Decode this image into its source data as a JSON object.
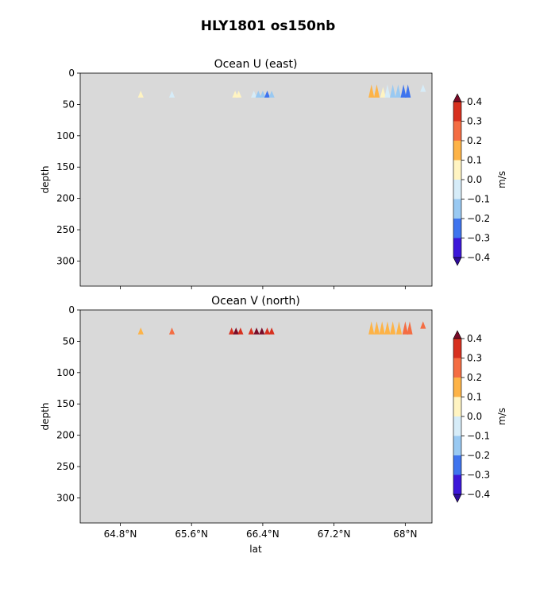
{
  "figure": {
    "suptitle": "HLY1801 os150nb"
  },
  "colorbar": {
    "unit_label": "m/s",
    "ticks": [
      0.4,
      0.3,
      0.2,
      0.1,
      0.0,
      -0.1,
      -0.2,
      -0.3,
      -0.4
    ],
    "tick_labels": [
      "0.4",
      "0.3",
      "0.2",
      "0.1",
      "0.0",
      "−0.1",
      "−0.2",
      "−0.3",
      "−0.4"
    ],
    "bins": [
      {
        "range": [
          0.3,
          0.4
        ],
        "color": "#d7301f"
      },
      {
        "range": [
          0.2,
          0.3
        ],
        "color": "#f46d43"
      },
      {
        "range": [
          0.1,
          0.2
        ],
        "color": "#fdb347"
      },
      {
        "range": [
          0.0,
          0.1
        ],
        "color": "#fff4c2"
      },
      {
        "range": [
          -0.1,
          0.0
        ],
        "color": "#d6ecf8"
      },
      {
        "range": [
          -0.2,
          -0.1
        ],
        "color": "#99c9f2"
      },
      {
        "range": [
          -0.3,
          -0.2
        ],
        "color": "#3f74ee"
      },
      {
        "range": [
          -0.4,
          -0.3
        ],
        "color": "#3c17d9"
      }
    ],
    "extend_max_color": "#7a0c28",
    "extend_min_color": "#2e0c9a"
  },
  "chart_data": [
    {
      "type": "heatmap",
      "title": "Ocean U (east)",
      "xlabel": "",
      "ylabel": "depth",
      "xlim": [
        64.35,
        68.3
      ],
      "ylim": [
        340,
        0
      ],
      "x_ticks": [
        64.8,
        65.6,
        66.4,
        67.2,
        68.0
      ],
      "x_tick_labels": [],
      "y_ticks": [
        0,
        50,
        100,
        150,
        200,
        250,
        300
      ],
      "y_tick_labels": [
        "0",
        "50",
        "100",
        "150",
        "200",
        "250",
        "300"
      ],
      "background": "#d9d9d9",
      "cells": [
        {
          "lat": 65.03,
          "value": 0.05,
          "depth": [
            28,
            39
          ]
        },
        {
          "lat": 65.38,
          "value": -0.05,
          "depth": [
            28,
            39
          ]
        },
        {
          "lat": 66.09,
          "value": 0.05,
          "depth": [
            28,
            39
          ]
        },
        {
          "lat": 66.13,
          "value": 0.05,
          "depth": [
            28,
            39
          ]
        },
        {
          "lat": 66.3,
          "value": -0.05,
          "depth": [
            28,
            39
          ]
        },
        {
          "lat": 66.35,
          "value": -0.15,
          "depth": [
            28,
            39
          ]
        },
        {
          "lat": 66.4,
          "value": -0.15,
          "depth": [
            28,
            39
          ]
        },
        {
          "lat": 66.45,
          "value": -0.25,
          "depth": [
            28,
            39
          ]
        },
        {
          "lat": 66.5,
          "value": -0.15,
          "depth": [
            28,
            39
          ]
        },
        {
          "lat": 67.62,
          "value": 0.15,
          "depth": [
            18,
            39
          ]
        },
        {
          "lat": 67.68,
          "value": 0.15,
          "depth": [
            18,
            39
          ]
        },
        {
          "lat": 67.75,
          "value": 0.05,
          "depth": [
            22,
            39
          ]
        },
        {
          "lat": 67.8,
          "value": -0.05,
          "depth": [
            18,
            39
          ]
        },
        {
          "lat": 67.86,
          "value": -0.15,
          "depth": [
            18,
            39
          ]
        },
        {
          "lat": 67.92,
          "value": -0.15,
          "depth": [
            18,
            39
          ]
        },
        {
          "lat": 67.98,
          "value": -0.25,
          "depth": [
            18,
            39
          ]
        },
        {
          "lat": 68.03,
          "value": -0.25,
          "depth": [
            18,
            39
          ]
        },
        {
          "lat": 68.2,
          "value": -0.05,
          "depth": [
            18,
            30
          ]
        }
      ]
    },
    {
      "type": "heatmap",
      "title": "Ocean V (north)",
      "xlabel": "lat",
      "ylabel": "depth",
      "xlim": [
        64.35,
        68.3
      ],
      "ylim": [
        340,
        0
      ],
      "x_ticks": [
        64.8,
        65.6,
        66.4,
        67.2,
        68.0
      ],
      "x_tick_labels": [
        "64.8°N",
        "65.6°N",
        "66.4°N",
        "67.2°N",
        "68°N"
      ],
      "y_ticks": [
        0,
        50,
        100,
        150,
        200,
        250,
        300
      ],
      "y_tick_labels": [
        "0",
        "50",
        "100",
        "150",
        "200",
        "250",
        "300"
      ],
      "background": "#d9d9d9",
      "cells": [
        {
          "lat": 65.03,
          "value": 0.15,
          "depth": [
            28,
            39
          ]
        },
        {
          "lat": 65.38,
          "value": 0.25,
          "depth": [
            28,
            39
          ]
        },
        {
          "lat": 66.05,
          "value": 0.35,
          "depth": [
            28,
            39
          ]
        },
        {
          "lat": 66.1,
          "value": 0.45,
          "depth": [
            28,
            39
          ]
        },
        {
          "lat": 66.15,
          "value": 0.35,
          "depth": [
            28,
            39
          ]
        },
        {
          "lat": 66.27,
          "value": 0.35,
          "depth": [
            28,
            39
          ]
        },
        {
          "lat": 66.33,
          "value": 0.45,
          "depth": [
            28,
            39
          ]
        },
        {
          "lat": 66.39,
          "value": 0.45,
          "depth": [
            28,
            39
          ]
        },
        {
          "lat": 66.45,
          "value": 0.35,
          "depth": [
            28,
            39
          ]
        },
        {
          "lat": 66.5,
          "value": 0.35,
          "depth": [
            28,
            39
          ]
        },
        {
          "lat": 67.62,
          "value": 0.15,
          "depth": [
            18,
            39
          ]
        },
        {
          "lat": 67.68,
          "value": 0.15,
          "depth": [
            18,
            39
          ]
        },
        {
          "lat": 67.74,
          "value": 0.15,
          "depth": [
            18,
            39
          ]
        },
        {
          "lat": 67.8,
          "value": 0.15,
          "depth": [
            18,
            39
          ]
        },
        {
          "lat": 67.86,
          "value": 0.15,
          "depth": [
            18,
            39
          ]
        },
        {
          "lat": 67.93,
          "value": 0.15,
          "depth": [
            18,
            39
          ]
        },
        {
          "lat": 68.0,
          "value": 0.25,
          "depth": [
            18,
            39
          ]
        },
        {
          "lat": 68.05,
          "value": 0.25,
          "depth": [
            18,
            39
          ]
        },
        {
          "lat": 68.2,
          "value": 0.25,
          "depth": [
            18,
            30
          ]
        }
      ]
    }
  ]
}
